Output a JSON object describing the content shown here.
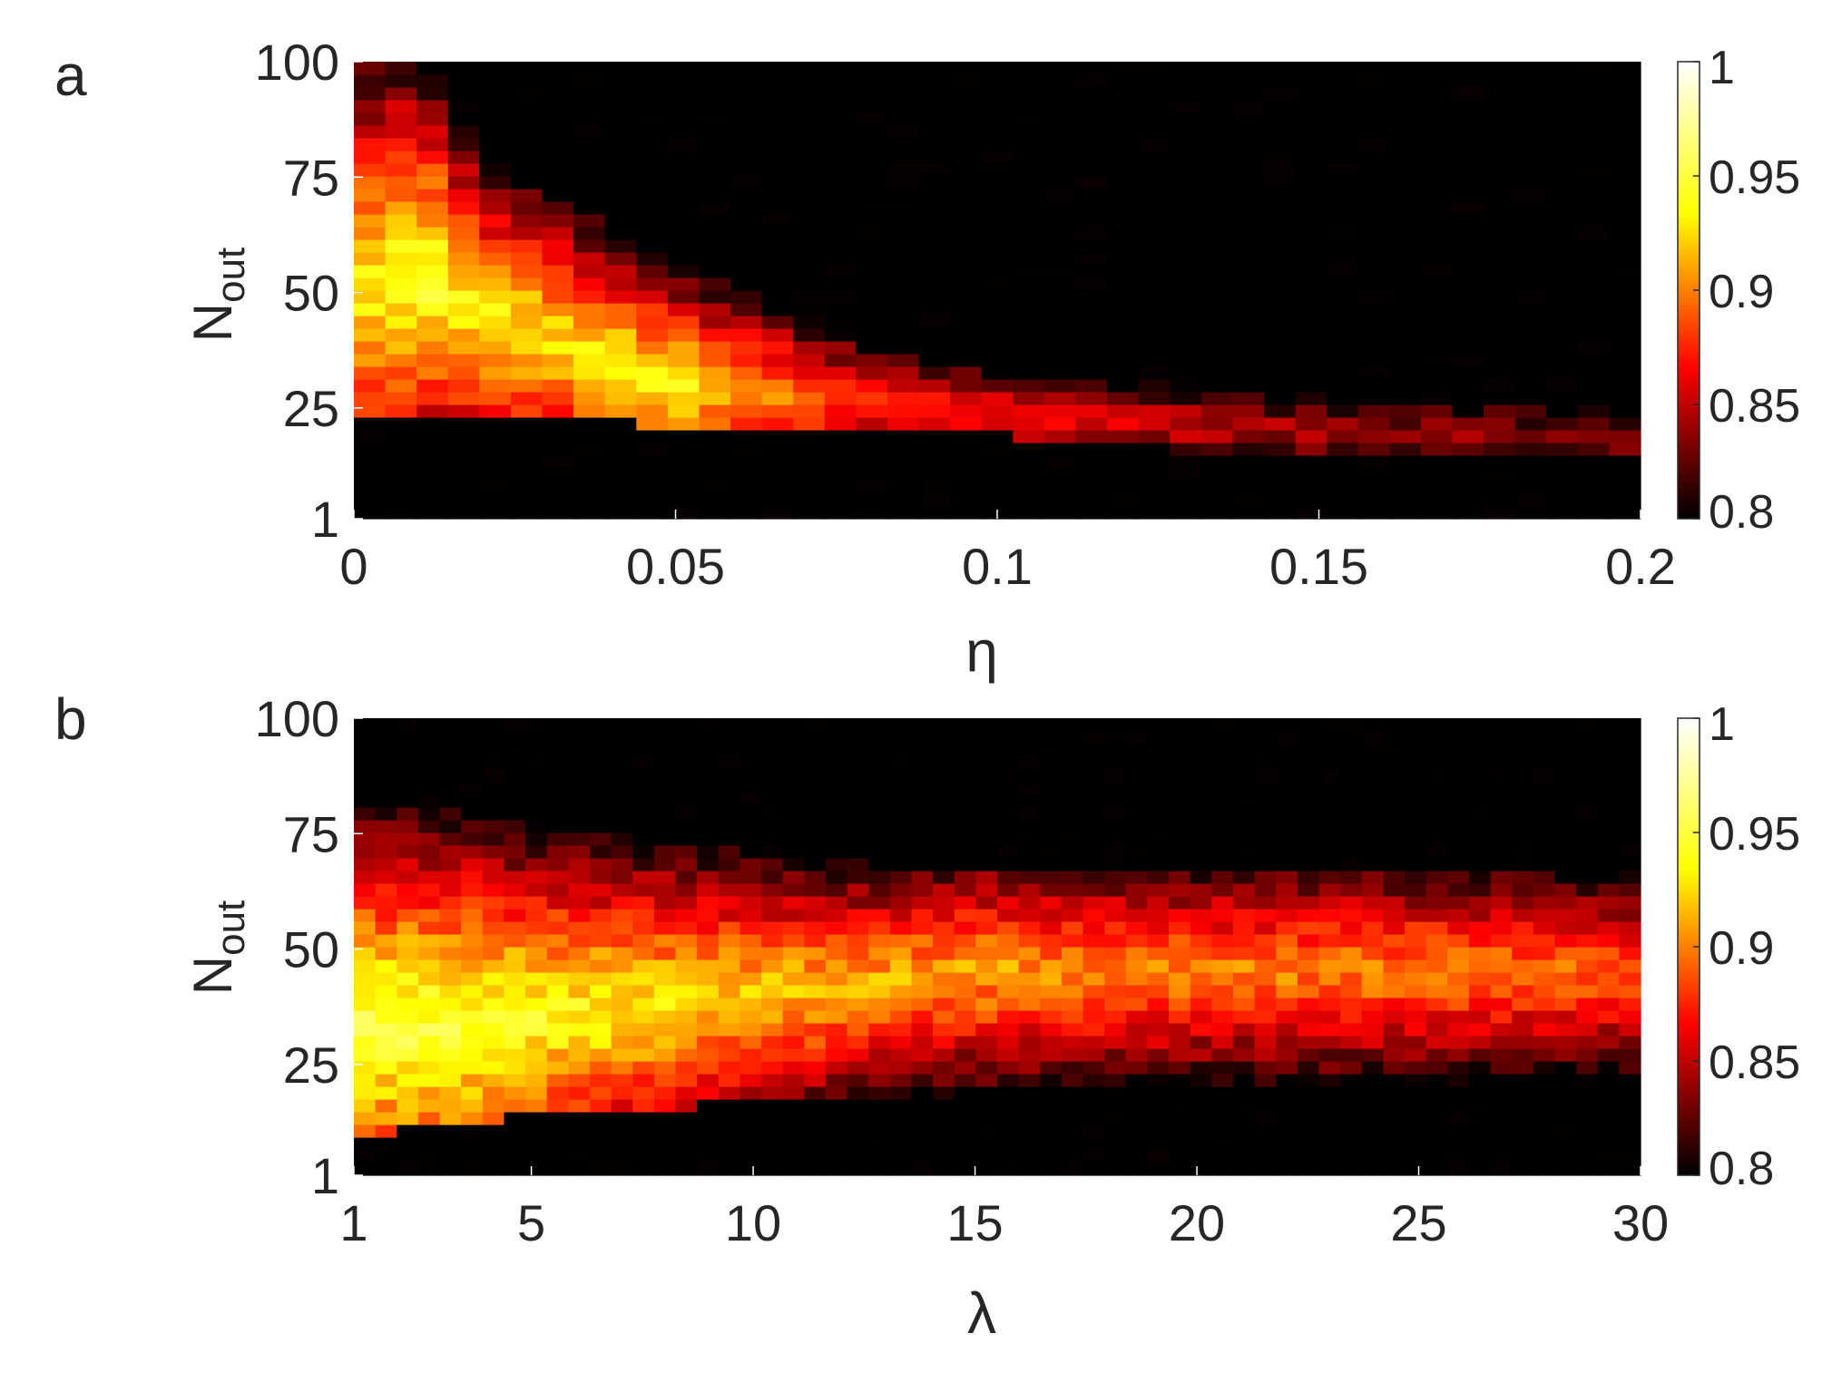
{
  "colors": {
    "background": "#ffffff",
    "axis": "#262626",
    "colormap": [
      "#000000",
      "#550000",
      "#aa0000",
      "#ff0000",
      "#ff5500",
      "#ffaa00",
      "#ffff00",
      "#ffff80",
      "#ffffff"
    ]
  },
  "chart_data": [
    {
      "type": "heatmap",
      "panel_label": "a",
      "xlabel": "η",
      "ylabel": "N",
      "ylabel_sub": "out",
      "xlim": [
        0,
        0.2
      ],
      "ylim": [
        1,
        100
      ],
      "xticks": [
        0,
        0.05,
        0.1,
        0.15,
        0.2
      ],
      "xtick_labels": [
        "0",
        "0.05",
        "0.1",
        "0.15",
        "0.2"
      ],
      "yticks": [
        1,
        25,
        50,
        75,
        100
      ],
      "ytick_labels": [
        "1",
        "25",
        "50",
        "75",
        "100"
      ],
      "colorbar": {
        "range": [
          0.8,
          1
        ],
        "ticks": [
          "0.8",
          "0.85",
          "0.9",
          "0.95",
          "1"
        ]
      },
      "colormap": "hot",
      "grid": false,
      "description_points": [
        {
          "x": 0.0,
          "band_lo": 25,
          "band_hi": 100,
          "peak_y": 50,
          "peak": 0.93
        },
        {
          "x": 0.01,
          "band_lo": 25,
          "band_hi": 100,
          "peak_y": 55,
          "peak": 0.95
        },
        {
          "x": 0.02,
          "band_lo": 25,
          "band_hi": 78,
          "peak_y": 45,
          "peak": 0.93
        },
        {
          "x": 0.05,
          "band_lo": 22,
          "band_hi": 55,
          "peak_y": 30,
          "peak": 0.93
        },
        {
          "x": 0.08,
          "band_lo": 20,
          "band_hi": 38,
          "peak_y": 26,
          "peak": 0.88
        },
        {
          "x": 0.1,
          "band_lo": 20,
          "band_hi": 32,
          "peak_y": 23,
          "peak": 0.87
        },
        {
          "x": 0.15,
          "band_lo": 15,
          "band_hi": 26,
          "peak_y": 20,
          "peak": 0.84
        },
        {
          "x": 0.2,
          "band_lo": 15,
          "band_hi": 23,
          "peak_y": 18,
          "peak": 0.83
        }
      ]
    },
    {
      "type": "heatmap",
      "panel_label": "b",
      "xlabel": "λ",
      "ylabel": "N",
      "ylabel_sub": "out",
      "xlim": [
        1,
        30
      ],
      "ylim": [
        1,
        100
      ],
      "xticks": [
        1,
        5,
        10,
        15,
        20,
        25,
        30
      ],
      "xtick_labels": [
        "1",
        "5",
        "10",
        "15",
        "20",
        "25",
        "30"
      ],
      "yticks": [
        1,
        25,
        50,
        75,
        100
      ],
      "ytick_labels": [
        "1",
        "25",
        "50",
        "75",
        "100"
      ],
      "colorbar": {
        "range": [
          0.8,
          1
        ],
        "ticks": [
          "0.8",
          "0.85",
          "0.9",
          "0.95",
          "1"
        ]
      },
      "colormap": "hot",
      "grid": false,
      "description_points": [
        {
          "x": 1,
          "band_lo": 10,
          "band_hi": 80,
          "peak_y": 33,
          "peak": 0.95
        },
        {
          "x": 3,
          "band_lo": 13,
          "band_hi": 80,
          "peak_y": 33,
          "peak": 0.95
        },
        {
          "x": 5,
          "band_lo": 15,
          "band_hi": 75,
          "peak_y": 35,
          "peak": 0.94
        },
        {
          "x": 10,
          "band_lo": 18,
          "band_hi": 70,
          "peak_y": 40,
          "peak": 0.92
        },
        {
          "x": 15,
          "band_lo": 20,
          "band_hi": 65,
          "peak_y": 45,
          "peak": 0.91
        },
        {
          "x": 20,
          "band_lo": 22,
          "band_hi": 65,
          "peak_y": 45,
          "peak": 0.9
        },
        {
          "x": 25,
          "band_lo": 22,
          "band_hi": 65,
          "peak_y": 45,
          "peak": 0.9
        },
        {
          "x": 30,
          "band_lo": 25,
          "band_hi": 65,
          "peak_y": 45,
          "peak": 0.89
        }
      ]
    }
  ]
}
